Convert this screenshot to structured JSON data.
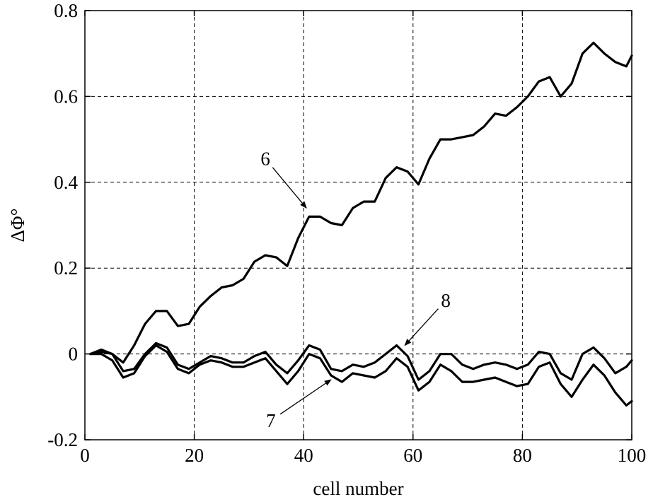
{
  "chart_data": {
    "type": "line",
    "title": "",
    "xlabel": "cell number",
    "ylabel": "ΔΦ°",
    "xlim": [
      0,
      100
    ],
    "ylim": [
      -0.2,
      0.8
    ],
    "xticks": [
      0,
      20,
      40,
      60,
      80,
      100
    ],
    "yticks": [
      -0.2,
      0,
      0.2,
      0.4,
      0.6,
      0.8
    ],
    "xtick_labels": [
      "0",
      "20",
      "40",
      "60",
      "80",
      "100"
    ],
    "ytick_labels": [
      "-0.2",
      "0",
      "0.2",
      "0.4",
      "0.6",
      "0.8"
    ],
    "grid": true,
    "legend": "none",
    "series": [
      {
        "x": [
          1,
          3,
          5,
          7,
          9,
          11,
          13,
          15,
          17,
          19,
          21,
          23,
          25,
          27,
          29,
          31,
          33,
          35,
          37,
          39,
          41,
          43,
          45,
          47,
          49,
          51,
          53,
          55,
          57,
          59,
          61,
          63,
          65,
          67,
          69,
          71,
          73,
          75,
          77,
          79,
          81,
          83,
          85,
          87,
          89,
          91,
          93,
          95,
          97,
          99,
          100
        ],
        "values": [
          0.0,
          0.01,
          0.0,
          -0.02,
          0.02,
          0.07,
          0.1,
          0.1,
          0.065,
          0.07,
          0.11,
          0.135,
          0.155,
          0.16,
          0.175,
          0.215,
          0.23,
          0.225,
          0.205,
          0.27,
          0.32,
          0.32,
          0.305,
          0.3,
          0.34,
          0.355,
          0.355,
          0.41,
          0.435,
          0.425,
          0.395,
          0.455,
          0.5,
          0.5,
          0.505,
          0.51,
          0.53,
          0.56,
          0.555,
          0.575,
          0.6,
          0.635,
          0.645,
          0.6,
          0.63,
          0.7,
          0.725,
          0.7,
          0.68,
          0.67,
          0.695
        ]
      },
      {
        "x": [
          1,
          3,
          5,
          7,
          9,
          11,
          13,
          15,
          17,
          19,
          21,
          23,
          25,
          27,
          29,
          31,
          33,
          35,
          37,
          39,
          41,
          43,
          45,
          47,
          49,
          51,
          53,
          55,
          57,
          59,
          61,
          63,
          65,
          67,
          69,
          71,
          73,
          75,
          77,
          79,
          81,
          83,
          85,
          87,
          89,
          91,
          93,
          95,
          97,
          99,
          100
        ],
        "values": [
          0.0,
          0.0,
          -0.015,
          -0.055,
          -0.045,
          -0.005,
          0.02,
          0.005,
          -0.035,
          -0.045,
          -0.025,
          -0.015,
          -0.02,
          -0.03,
          -0.03,
          -0.02,
          -0.01,
          -0.04,
          -0.07,
          -0.04,
          0.0,
          -0.01,
          -0.05,
          -0.065,
          -0.045,
          -0.05,
          -0.055,
          -0.04,
          -0.01,
          -0.03,
          -0.085,
          -0.065,
          -0.025,
          -0.04,
          -0.065,
          -0.065,
          -0.06,
          -0.055,
          -0.065,
          -0.075,
          -0.07,
          -0.03,
          -0.02,
          -0.07,
          -0.1,
          -0.06,
          -0.025,
          -0.05,
          -0.09,
          -0.12,
          -0.11
        ]
      },
      {
        "x": [
          1,
          3,
          5,
          7,
          9,
          11,
          13,
          15,
          17,
          19,
          21,
          23,
          25,
          27,
          29,
          31,
          33,
          35,
          37,
          39,
          41,
          43,
          45,
          47,
          49,
          51,
          53,
          55,
          57,
          59,
          61,
          63,
          65,
          67,
          69,
          71,
          73,
          75,
          77,
          79,
          81,
          83,
          85,
          87,
          89,
          91,
          93,
          95,
          97,
          99,
          100
        ],
        "values": [
          0.0,
          0.005,
          0.0,
          -0.04,
          -0.035,
          0.0,
          0.025,
          0.015,
          -0.025,
          -0.035,
          -0.02,
          -0.005,
          -0.01,
          -0.02,
          -0.02,
          -0.005,
          0.005,
          -0.025,
          -0.045,
          -0.015,
          0.02,
          0.01,
          -0.035,
          -0.04,
          -0.025,
          -0.03,
          -0.02,
          0.0,
          0.02,
          -0.005,
          -0.06,
          -0.04,
          0.0,
          0.0,
          -0.025,
          -0.035,
          -0.025,
          -0.02,
          -0.025,
          -0.035,
          -0.025,
          0.005,
          0.0,
          -0.045,
          -0.06,
          0.0,
          0.015,
          -0.01,
          -0.045,
          -0.03,
          -0.015
        ]
      }
    ],
    "annotations": [
      {
        "text": "6",
        "x": 33,
        "y": 0.44,
        "arrow_to_x": 40.5,
        "arrow_to_y": 0.34
      },
      {
        "text": "8",
        "x": 66,
        "y": 0.11,
        "arrow_to_x": 58.5,
        "arrow_to_y": 0.02
      },
      {
        "text": "7",
        "x": 34,
        "y": -0.17,
        "arrow_to_x": 45,
        "arrow_to_y": -0.06
      }
    ]
  }
}
